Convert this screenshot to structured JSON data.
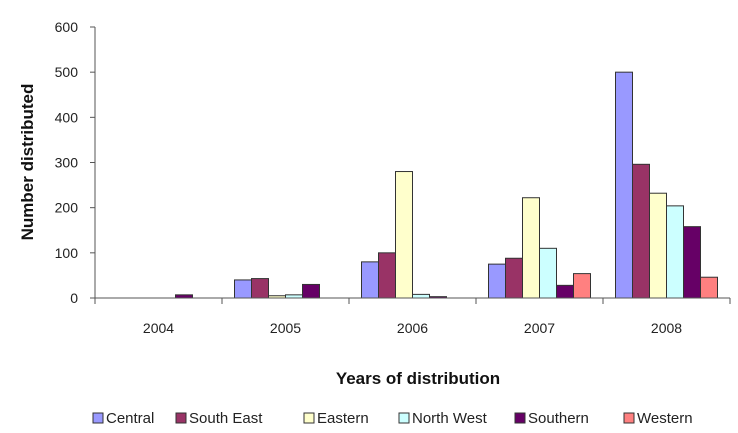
{
  "chart_data": {
    "type": "bar",
    "title": "",
    "xlabel": "Years of distribution",
    "ylabel": "Number distributed",
    "categories": [
      "2004",
      "2005",
      "2006",
      "2007",
      "2008"
    ],
    "ylim": [
      0,
      600
    ],
    "yticks": [
      0,
      100,
      200,
      300,
      400,
      500,
      600
    ],
    "grid": false,
    "legend_position": "bottom",
    "series": [
      {
        "name": "Central",
        "color": "#9999ff",
        "values": [
          0,
          40,
          80,
          75,
          500
        ]
      },
      {
        "name": "South East",
        "color": "#993366",
        "values": [
          0,
          43,
          100,
          88,
          296
        ]
      },
      {
        "name": "Eastern",
        "color": "#ffffcc",
        "values": [
          0,
          5,
          280,
          222,
          232
        ]
      },
      {
        "name": "North West",
        "color": "#ccffff",
        "values": [
          0,
          7,
          8,
          110,
          204
        ]
      },
      {
        "name": "Southern",
        "color": "#660066",
        "values": [
          7,
          30,
          3,
          28,
          158
        ]
      },
      {
        "name": "Western",
        "color": "#ff8080",
        "values": [
          0,
          0,
          0,
          54,
          46
        ]
      }
    ]
  }
}
